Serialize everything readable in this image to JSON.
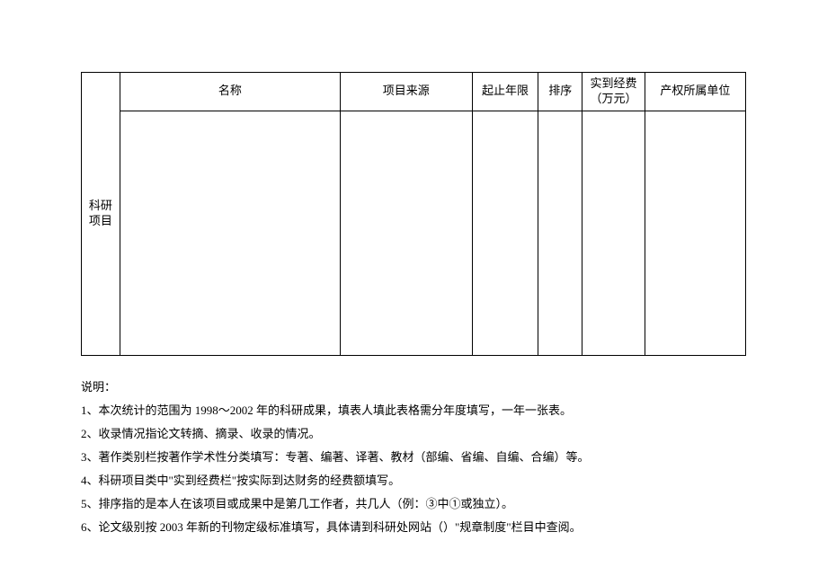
{
  "table": {
    "side_label": "科研项目",
    "headers": {
      "name": "名称",
      "source": "项目来源",
      "years": "起止年限",
      "order": "排序",
      "fund": "实到经费（万元）",
      "owner": "产权所属单位"
    }
  },
  "notes": {
    "title": "说明：",
    "items": [
      "1、本次统计的范围为 1998～2002 年的科研成果，填表人填此表格需分年度填写，一年一张表。",
      "2、收录情况指论文转摘、摘录、收录的情况。",
      "3、著作类别栏按著作学术性分类填写：专著、编著、译著、教材（部编、省编、自编、合编）等。",
      "4、科研项目类中\"实到经费栏\"按实际到达财务的经费额填写。",
      "5、排序指的是本人在该项目或成果中是第几工作者，共几人（例：③中①或独立）。",
      "6、论文级别按 2003 年新的刊物定级标准填写，具体请到科研处网站（）\"规章制度\"栏目中查阅。"
    ]
  }
}
